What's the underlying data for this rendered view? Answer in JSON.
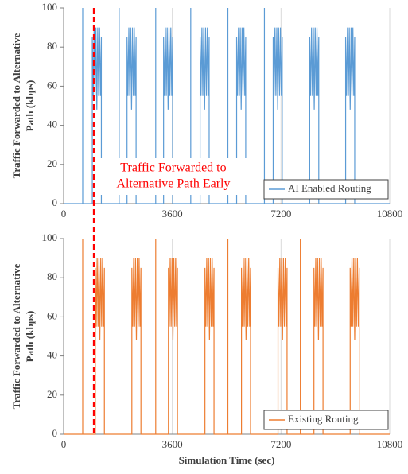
{
  "chart_data": [
    {
      "type": "line",
      "y_label": [
        "Traffic Forwarded to Alternative",
        "Path (kbps)"
      ],
      "xlim": [
        0,
        10800
      ],
      "ylim": [
        0,
        100
      ],
      "xticks": [
        0,
        3600,
        7200,
        10800
      ],
      "yticks": [
        0,
        20,
        40,
        60,
        80,
        100
      ],
      "grid": "x",
      "legend": "lower right",
      "annotation": {
        "lines": [
          "Traffic  Forwarded to",
          "Alternative Path Early"
        ],
        "x": 1000,
        "color": "#ff0000"
      },
      "series": [
        {
          "name": "AI Enabled Routing",
          "color": "#5b9bd5",
          "x": [
            0,
            632,
            632,
            632,
            950,
            950,
            980,
            1010,
            1040,
            1070,
            1100,
            1130,
            1160,
            1190,
            1220,
            1250,
            1250,
            1840,
            1840,
            1840,
            2100,
            2100,
            2130,
            2160,
            2190,
            2220,
            2250,
            2280,
            2310,
            2340,
            2370,
            2400,
            2400,
            3050,
            3050,
            3050,
            3310,
            3310,
            3340,
            3370,
            3400,
            3430,
            3460,
            3490,
            3520,
            3550,
            3580,
            3610,
            3610,
            4210,
            4210,
            4210,
            4520,
            4520,
            4550,
            4580,
            4610,
            4640,
            4670,
            4700,
            4730,
            4760,
            4790,
            4820,
            4820,
            5440,
            5440,
            5440,
            5730,
            5730,
            5760,
            5790,
            5820,
            5850,
            5880,
            5910,
            5940,
            5970,
            6000,
            6030,
            6030,
            6650,
            6650,
            6650,
            6940,
            6940,
            6970,
            7000,
            7030,
            7060,
            7090,
            7120,
            7150,
            7180,
            7210,
            7240,
            7240,
            8150,
            8150,
            8180,
            8210,
            8240,
            8270,
            8300,
            8330,
            8360,
            8390,
            8420,
            8450,
            8450,
            9340,
            9340,
            9370,
            9400,
            9430,
            9460,
            9490,
            9520,
            9550,
            9580,
            9610,
            9640,
            9640,
            10800
          ],
          "values": [
            0,
            0,
            100,
            0,
            0,
            85,
            55,
            90,
            55,
            90,
            48,
            90,
            55,
            90,
            55,
            85,
            0,
            0,
            100,
            0,
            0,
            85,
            55,
            90,
            55,
            90,
            48,
            90,
            55,
            90,
            55,
            85,
            0,
            0,
            100,
            0,
            0,
            85,
            55,
            90,
            55,
            90,
            48,
            90,
            55,
            90,
            55,
            85,
            0,
            0,
            100,
            0,
            0,
            85,
            55,
            90,
            55,
            90,
            48,
            90,
            55,
            90,
            55,
            85,
            0,
            0,
            100,
            0,
            0,
            85,
            55,
            90,
            55,
            90,
            48,
            90,
            55,
            90,
            55,
            85,
            0,
            0,
            100,
            0,
            0,
            85,
            55,
            90,
            55,
            90,
            48,
            90,
            55,
            90,
            55,
            85,
            0,
            0,
            85,
            55,
            90,
            55,
            90,
            48,
            90,
            55,
            90,
            55,
            85,
            0,
            0,
            85,
            55,
            90,
            55,
            90,
            48,
            90,
            55,
            90,
            55,
            85,
            0,
            0
          ]
        }
      ]
    },
    {
      "type": "line",
      "y_label": [
        "Traffic Forwarded to Alternative",
        "Path (kbps)"
      ],
      "x_label": "Simulation Time (sec)",
      "xlim": [
        0,
        10800
      ],
      "ylim": [
        0,
        100
      ],
      "xticks": [
        0,
        3600,
        7200,
        10800
      ],
      "yticks": [
        0,
        20,
        40,
        60,
        80,
        100
      ],
      "grid": "x",
      "legend": "lower right",
      "series": [
        {
          "name": "Existing Routing",
          "color": "#ed7d31",
          "x": [
            0,
            632,
            632,
            632,
            1050,
            1050,
            1080,
            1110,
            1140,
            1170,
            1200,
            1230,
            1260,
            1290,
            1320,
            1350,
            1350,
            2260,
            2260,
            2290,
            2320,
            2350,
            2380,
            2410,
            2440,
            2470,
            2500,
            2530,
            2560,
            2560,
            3050,
            3050,
            3050,
            3470,
            3470,
            3500,
            3530,
            3560,
            3590,
            3620,
            3650,
            3680,
            3710,
            3740,
            3770,
            3770,
            4680,
            4680,
            4710,
            4740,
            4770,
            4800,
            4830,
            4860,
            4890,
            4920,
            4950,
            4980,
            4980,
            5440,
            5440,
            5440,
            5890,
            5890,
            5920,
            5950,
            5980,
            6010,
            6040,
            6070,
            6100,
            6130,
            6160,
            6190,
            6190,
            7100,
            7100,
            7130,
            7160,
            7190,
            7220,
            7250,
            7280,
            7310,
            7340,
            7370,
            7400,
            7400,
            7840,
            7840,
            7840,
            8290,
            8290,
            8320,
            8350,
            8380,
            8410,
            8440,
            8470,
            8500,
            8530,
            8560,
            8590,
            8590,
            9490,
            9490,
            9520,
            9550,
            9580,
            9610,
            9640,
            9670,
            9700,
            9730,
            9760,
            9790,
            9790,
            10800
          ],
          "values": [
            0,
            0,
            100,
            0,
            0,
            85,
            55,
            90,
            55,
            90,
            48,
            90,
            55,
            90,
            55,
            85,
            0,
            0,
            85,
            55,
            90,
            55,
            90,
            48,
            90,
            55,
            90,
            55,
            85,
            0,
            0,
            100,
            0,
            0,
            85,
            55,
            90,
            55,
            90,
            48,
            90,
            55,
            90,
            55,
            85,
            0,
            0,
            85,
            55,
            90,
            55,
            90,
            48,
            90,
            55,
            90,
            55,
            85,
            0,
            0,
            100,
            0,
            0,
            85,
            55,
            90,
            55,
            90,
            48,
            90,
            55,
            90,
            55,
            85,
            0,
            0,
            85,
            55,
            90,
            55,
            90,
            48,
            90,
            55,
            90,
            55,
            85,
            0,
            0,
            100,
            0,
            0,
            85,
            55,
            90,
            55,
            90,
            48,
            90,
            55,
            90,
            55,
            85,
            0,
            0,
            85,
            55,
            90,
            55,
            90,
            48,
            90,
            55,
            90,
            55,
            85,
            0,
            0
          ]
        }
      ]
    }
  ]
}
